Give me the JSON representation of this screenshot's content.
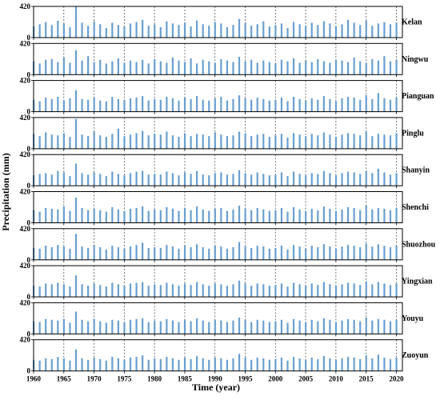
{
  "chart_data": {
    "type": "bar",
    "xlabel": "Time (year)",
    "ylabel": "Precipitation (mm)",
    "color": "#6a9fcf",
    "x": [
      1960,
      1961,
      1962,
      1963,
      1964,
      1965,
      1966,
      1967,
      1968,
      1969,
      1970,
      1971,
      1972,
      1973,
      1974,
      1975,
      1976,
      1977,
      1978,
      1979,
      1980,
      1981,
      1982,
      1983,
      1984,
      1985,
      1986,
      1987,
      1988,
      1989,
      1990,
      1991,
      1992,
      1993,
      1994,
      1995,
      1996,
      1997,
      1998,
      1999,
      2000,
      2001,
      2002,
      2003,
      2004,
      2005,
      2006,
      2007,
      2008,
      2009,
      2010,
      2011,
      2012,
      2013,
      2014,
      2015,
      2016,
      2017,
      2018,
      2019,
      2020
    ],
    "xlim": [
      1960,
      2021
    ],
    "xticks": [
      1960,
      1965,
      1970,
      1975,
      1980,
      1985,
      1990,
      1995,
      2000,
      2005,
      2010,
      2015,
      2020
    ],
    "ylim": [
      0,
      420
    ],
    "yticks": [
      0,
      420
    ],
    "series": [
      {
        "name": "Kelan",
        "values": [
          150,
          180,
          210,
          170,
          230,
          190,
          140,
          420,
          200,
          160,
          220,
          180,
          130,
          200,
          170,
          150,
          190,
          210,
          240,
          160,
          180,
          140,
          220,
          190,
          170,
          200,
          150,
          230,
          180,
          160,
          210,
          190,
          140,
          170,
          250,
          200,
          160,
          180,
          220,
          150,
          170,
          190,
          130,
          210,
          180,
          160,
          200,
          170,
          220,
          190,
          150,
          180,
          240,
          200,
          170,
          230,
          160,
          190,
          210,
          180,
          200
        ]
      },
      {
        "name": "Ningwu",
        "values": [
          180,
          150,
          200,
          210,
          170,
          230,
          160,
          330,
          190,
          250,
          170,
          200,
          150,
          180,
          220,
          160,
          190,
          170,
          200,
          150,
          210,
          180,
          160,
          230,
          190,
          170,
          220,
          150,
          200,
          180,
          160,
          210,
          190,
          170,
          240,
          180,
          200,
          160,
          190,
          170,
          150,
          200,
          180,
          220,
          160,
          190,
          170,
          210,
          180,
          160,
          200,
          190,
          170,
          230,
          180,
          160,
          210,
          190,
          250,
          180,
          200
        ]
      },
      {
        "name": "Pianguan",
        "values": [
          160,
          140,
          190,
          170,
          200,
          150,
          180,
          290,
          170,
          160,
          190,
          150,
          140,
          200,
          170,
          160,
          180,
          190,
          210,
          150,
          170,
          160,
          200,
          180,
          150,
          190,
          170,
          210,
          160,
          150,
          180,
          200,
          150,
          170,
          220,
          180,
          160,
          190,
          170,
          150,
          160,
          190,
          140,
          200,
          170,
          150,
          180,
          160,
          210,
          170,
          140,
          180,
          200,
          190,
          160,
          220,
          170,
          250,
          180,
          160,
          190
        ]
      },
      {
        "name": "Pinglu",
        "values": [
          200,
          170,
          220,
          190,
          180,
          210,
          160,
          400,
          190,
          170,
          230,
          180,
          160,
          200,
          270,
          170,
          190,
          210,
          240,
          180,
          200,
          190,
          230,
          180,
          160,
          210,
          170,
          200,
          190,
          170,
          220,
          190,
          170,
          180,
          230,
          210,
          170,
          190,
          200,
          160,
          180,
          200,
          150,
          210,
          190,
          170,
          200,
          180,
          220,
          190,
          160,
          190,
          210,
          200,
          180,
          230,
          170,
          200,
          190,
          180,
          210
        ]
      },
      {
        "name": "Shanyin",
        "values": [
          140,
          160,
          170,
          150,
          200,
          180,
          130,
          300,
          170,
          150,
          180,
          160,
          130,
          190,
          160,
          140,
          170,
          190,
          200,
          150,
          160,
          150,
          190,
          170,
          140,
          180,
          160,
          200,
          150,
          140,
          170,
          180,
          150,
          160,
          210,
          170,
          150,
          180,
          160,
          140,
          150,
          180,
          130,
          190,
          160,
          140,
          170,
          160,
          200,
          170,
          140,
          170,
          190,
          180,
          160,
          200,
          170,
          230,
          180,
          150,
          170
        ]
      },
      {
        "name": "Shenchi",
        "values": [
          170,
          150,
          200,
          190,
          180,
          220,
          160,
          340,
          200,
          170,
          190,
          170,
          150,
          210,
          180,
          160,
          190,
          200,
          220,
          160,
          180,
          170,
          210,
          190,
          160,
          200,
          170,
          220,
          180,
          160,
          190,
          200,
          160,
          180,
          230,
          190,
          170,
          200,
          180,
          160,
          170,
          200,
          150,
          210,
          180,
          160,
          190,
          170,
          220,
          190,
          160,
          180,
          210,
          200,
          170,
          230,
          180,
          200,
          190,
          170,
          200
        ]
      },
      {
        "name": "Shuozhou",
        "values": [
          160,
          150,
          190,
          170,
          200,
          180,
          150,
          350,
          180,
          160,
          200,
          170,
          140,
          190,
          170,
          150,
          180,
          200,
          230,
          160,
          170,
          160,
          200,
          180,
          150,
          190,
          170,
          210,
          170,
          150,
          190,
          180,
          150,
          170,
          240,
          180,
          160,
          190,
          180,
          150,
          160,
          190,
          140,
          200,
          180,
          150,
          190,
          170,
          210,
          180,
          150,
          180,
          200,
          190,
          170,
          220,
          180,
          210,
          190,
          170,
          190
        ]
      },
      {
        "name": "Yingxian",
        "values": [
          150,
          140,
          180,
          170,
          190,
          170,
          140,
          290,
          170,
          150,
          180,
          160,
          140,
          190,
          170,
          150,
          180,
          190,
          200,
          150,
          170,
          160,
          190,
          170,
          150,
          180,
          160,
          200,
          170,
          150,
          180,
          170,
          150,
          170,
          220,
          180,
          150,
          180,
          170,
          150,
          160,
          180,
          140,
          190,
          170,
          150,
          180,
          160,
          200,
          170,
          150,
          170,
          190,
          180,
          160,
          210,
          170,
          200,
          180,
          160,
          180
        ]
      },
      {
        "name": "Youyu",
        "values": [
          170,
          160,
          200,
          190,
          180,
          200,
          150,
          300,
          190,
          170,
          200,
          170,
          150,
          190,
          180,
          160,
          190,
          200,
          210,
          160,
          180,
          170,
          200,
          180,
          160,
          190,
          170,
          210,
          180,
          160,
          190,
          180,
          160,
          180,
          220,
          190,
          160,
          190,
          180,
          160,
          170,
          190,
          150,
          200,
          180,
          160,
          190,
          170,
          210,
          190,
          160,
          180,
          200,
          190,
          170,
          220,
          180,
          200,
          190,
          170,
          190
        ]
      },
      {
        "name": "Zuoyun",
        "values": [
          150,
          140,
          170,
          160,
          190,
          170,
          140,
          290,
          170,
          150,
          180,
          160,
          140,
          190,
          170,
          150,
          180,
          190,
          210,
          150,
          170,
          160,
          190,
          170,
          150,
          180,
          160,
          200,
          170,
          150,
          180,
          170,
          150,
          170,
          230,
          180,
          150,
          180,
          170,
          150,
          160,
          180,
          140,
          190,
          170,
          150,
          180,
          160,
          200,
          170,
          150,
          170,
          190,
          180,
          160,
          210,
          170,
          220,
          180,
          160,
          180
        ]
      }
    ]
  }
}
